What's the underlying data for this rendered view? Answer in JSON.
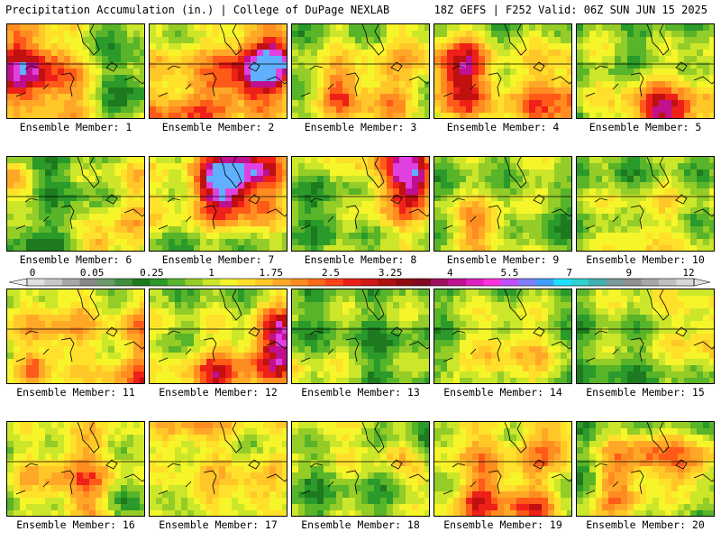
{
  "header": {
    "left": "Precipitation Accumulation (in.) | College of DuPage NEXLAB",
    "right": "18Z GEFS | F252 Valid: 06Z SUN JUN 15 2025"
  },
  "members": [
    {
      "label": "Ensemble Member: 1"
    },
    {
      "label": "Ensemble Member: 2"
    },
    {
      "label": "Ensemble Member: 3"
    },
    {
      "label": "Ensemble Member: 4"
    },
    {
      "label": "Ensemble Member: 5"
    },
    {
      "label": "Ensemble Member: 6"
    },
    {
      "label": "Ensemble Member: 7"
    },
    {
      "label": "Ensemble Member: 8"
    },
    {
      "label": "Ensemble Member: 9"
    },
    {
      "label": "Ensemble Member: 10"
    },
    {
      "label": "Ensemble Member: 11"
    },
    {
      "label": "Ensemble Member: 12"
    },
    {
      "label": "Ensemble Member: 13"
    },
    {
      "label": "Ensemble Member: 14"
    },
    {
      "label": "Ensemble Member: 15"
    },
    {
      "label": "Ensemble Member: 16"
    },
    {
      "label": "Ensemble Member: 17"
    },
    {
      "label": "Ensemble Member: 18"
    },
    {
      "label": "Ensemble Member: 19"
    },
    {
      "label": "Ensemble Member: 20"
    }
  ],
  "colorbar": {
    "tick_labels": [
      "0",
      "0.05",
      "0.25",
      "1",
      "1.75",
      "2.5",
      "3.25",
      "4",
      "5.5",
      "7",
      "9",
      "12"
    ],
    "colors": [
      "#e0e0e0",
      "#c8c8c8",
      "#a8a8a8",
      "#888888",
      "#6a9a6a",
      "#3f8f3f",
      "#1e7a1e",
      "#2a9a2a",
      "#58b428",
      "#94cc28",
      "#cce62a",
      "#f5f52a",
      "#ffe02a",
      "#ffc828",
      "#ffa828",
      "#ff8c20",
      "#ff6a18",
      "#ff4418",
      "#ee2018",
      "#d01818",
      "#b01010",
      "#900c0c",
      "#800820",
      "#a01060",
      "#c01090",
      "#e020c0",
      "#ff30e0",
      "#c050ff",
      "#8080ff",
      "#40a0ff",
      "#20e0ff",
      "#30d0d0",
      "#40b0b0",
      "#7a9a9a",
      "#909090",
      "#a8a8a8",
      "#c0c0c0",
      "#d8d8d8"
    ]
  },
  "field_palette": [
    "#1e7a1e",
    "#2a9a2a",
    "#58b428",
    "#94cc28",
    "#cce62a",
    "#f5f52a",
    "#ffe02a",
    "#ffc828",
    "#ffa828",
    "#ff8c20",
    "#ff5a18",
    "#ee2018",
    "#c01010",
    "#c01090",
    "#e040e0",
    "#60b0ff"
  ]
}
